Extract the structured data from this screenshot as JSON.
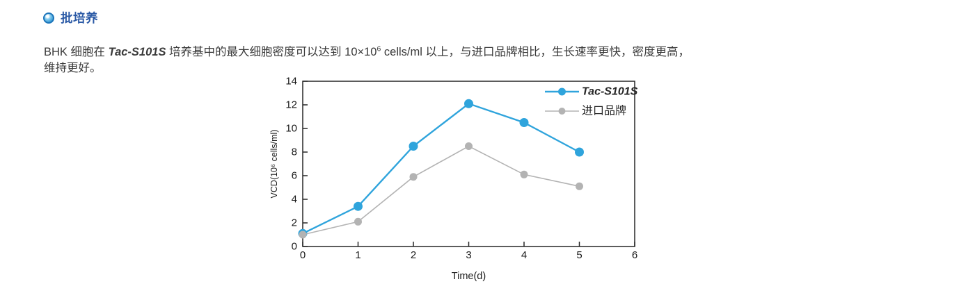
{
  "heading": {
    "bullet_icon": "glossy-circle-bullet-icon",
    "title": "批培养",
    "color": "#2b5aa6"
  },
  "paragraph": {
    "segments": [
      {
        "text": "BHK 细胞在 ",
        "style": "normal"
      },
      {
        "text": "Tac-S101S",
        "style": "brand"
      },
      {
        "text": " 培养基中的最大细胞密度可以达到 10×10",
        "style": "normal"
      },
      {
        "text": "6",
        "style": "sup"
      },
      {
        "text": " cells/ml 以上，与进口品牌相比，生长速率更快，密度更高，",
        "style": "normal"
      },
      {
        "style": "br"
      },
      {
        "text": "维持更好。",
        "style": "normal"
      }
    ]
  },
  "chart_data": {
    "type": "line",
    "x": [
      0,
      1,
      2,
      3,
      4,
      5
    ],
    "series": [
      {
        "name": "Tac-S101S",
        "values": [
          1.1,
          3.4,
          8.5,
          12.1,
          10.5,
          8.0
        ],
        "color": "#2fa4dc",
        "marker": "circle",
        "legend_italic": true
      },
      {
        "name": "进口品牌",
        "values": [
          1.0,
          2.1,
          5.9,
          8.5,
          6.1,
          5.1
        ],
        "color": "#b3b3b3",
        "marker": "circle",
        "legend_italic": false
      }
    ],
    "title": "",
    "xlabel": "Time(d)",
    "ylabel": "VCD(10⁶ cells/ml)",
    "xlim": [
      0,
      6
    ],
    "ylim": [
      0,
      14
    ],
    "xticks": [
      0,
      1,
      2,
      3,
      4,
      5,
      6
    ],
    "yticks": [
      0,
      2,
      4,
      6,
      8,
      10,
      12,
      14
    ],
    "grid": false,
    "frame": true,
    "ticks_inside": true,
    "legend_position": "top-right-inside",
    "axis_color": "#262626",
    "tick_label_color": "#1a1a1a"
  }
}
